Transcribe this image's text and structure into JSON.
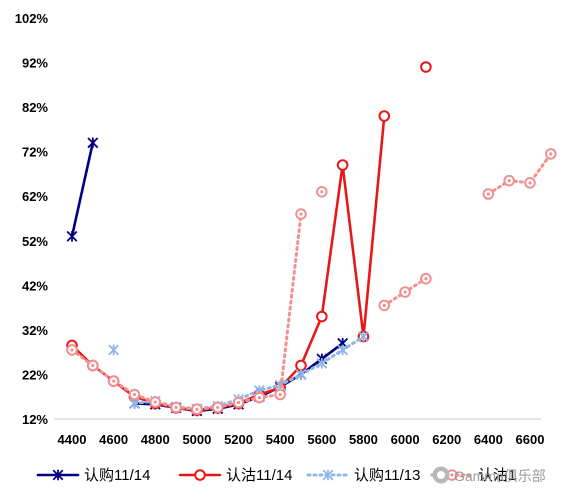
{
  "chart_data": {
    "type": "line",
    "x_ticks": [
      4400,
      4600,
      4800,
      5000,
      5200,
      5400,
      5600,
      5800,
      6000,
      6200,
      6400,
      6600
    ],
    "y_ticks": [
      "12%",
      "22%",
      "32%",
      "42%",
      "52%",
      "62%",
      "72%",
      "82%",
      "92%",
      "102%"
    ],
    "xlim": [
      4350,
      6750
    ],
    "ylim": [
      12,
      102
    ],
    "grid": false,
    "legend_position": "bottom",
    "series": [
      {
        "name": "认购11/14",
        "color": "#000080",
        "style": "solid",
        "marker": "star",
        "segments": [
          [
            [
              4400,
              53
            ],
            [
              4500,
              74
            ]
          ],
          [
            [
              4700,
              15.5
            ],
            [
              4800,
              15.3
            ],
            [
              4900,
              14.5
            ],
            [
              5000,
              13.8
            ],
            [
              5100,
              14.3
            ],
            [
              5200,
              15.3
            ],
            [
              5300,
              17
            ],
            [
              5400,
              19.2
            ],
            [
              5500,
              22
            ],
            [
              5600,
              25.5
            ],
            [
              5700,
              29
            ]
          ]
        ]
      },
      {
        "name": "认沽11/14",
        "color": "#e81818",
        "style": "solid",
        "marker": "circle",
        "segments": [
          [
            [
              4400,
              28.5
            ],
            [
              4500,
              24
            ],
            [
              4600,
              20.5
            ],
            [
              4700,
              17
            ],
            [
              4800,
              15.5
            ],
            [
              4900,
              14.5
            ],
            [
              5000,
              14
            ],
            [
              5100,
              14.5
            ],
            [
              5200,
              15.5
            ],
            [
              5300,
              17.5
            ],
            [
              5400,
              19
            ],
            [
              5500,
              24
            ],
            [
              5600,
              35
            ],
            [
              5700,
              69
            ],
            [
              5800,
              30.5
            ],
            [
              5900,
              80
            ]
          ]
        ],
        "points": [
          [
            6100,
            91
          ]
        ]
      },
      {
        "name": "认购11/13",
        "color": "#8fb7e6",
        "style": "dotted",
        "marker": "star",
        "segments": [
          [
            [
              4700,
              15.5
            ],
            [
              4800,
              16
            ],
            [
              4900,
              14.7
            ],
            [
              5000,
              14.3
            ],
            [
              5100,
              14.9
            ],
            [
              5200,
              16.4
            ],
            [
              5300,
              18.4
            ],
            [
              5400,
              19.6
            ],
            [
              5500,
              22
            ],
            [
              5600,
              24.5
            ],
            [
              5700,
              27.5
            ],
            [
              5800,
              30.5
            ]
          ]
        ],
        "points": [
          [
            4600,
            27.5
          ]
        ]
      },
      {
        "name": "认沽11/13",
        "color": "#f09090",
        "style": "dotted",
        "marker": "circle-dot",
        "segments": [
          [
            [
              4400,
              27.5
            ],
            [
              4500,
              24
            ],
            [
              4600,
              20.5
            ],
            [
              4700,
              17.5
            ],
            [
              4800,
              15.8
            ],
            [
              4900,
              14.6
            ],
            [
              5000,
              14.2
            ],
            [
              5100,
              14.6
            ],
            [
              5200,
              15.7
            ],
            [
              5300,
              16.8
            ],
            [
              5400,
              17.5
            ],
            [
              5500,
              58
            ]
          ],
          [
            [
              5900,
              37.5
            ],
            [
              6000,
              40.5
            ],
            [
              6100,
              43.5
            ]
          ],
          [
            [
              6400,
              62.5
            ],
            [
              6500,
              65.5
            ],
            [
              6600,
              65
            ],
            [
              6700,
              71.5
            ]
          ]
        ],
        "points": [
          [
            5600,
            63
          ]
        ]
      }
    ]
  },
  "legend": {
    "items": [
      "认购11/14",
      "认沽11/14",
      "认购11/13",
      "认沽1"
    ]
  },
  "watermark": {
    "text": "Gamma俱乐部"
  }
}
